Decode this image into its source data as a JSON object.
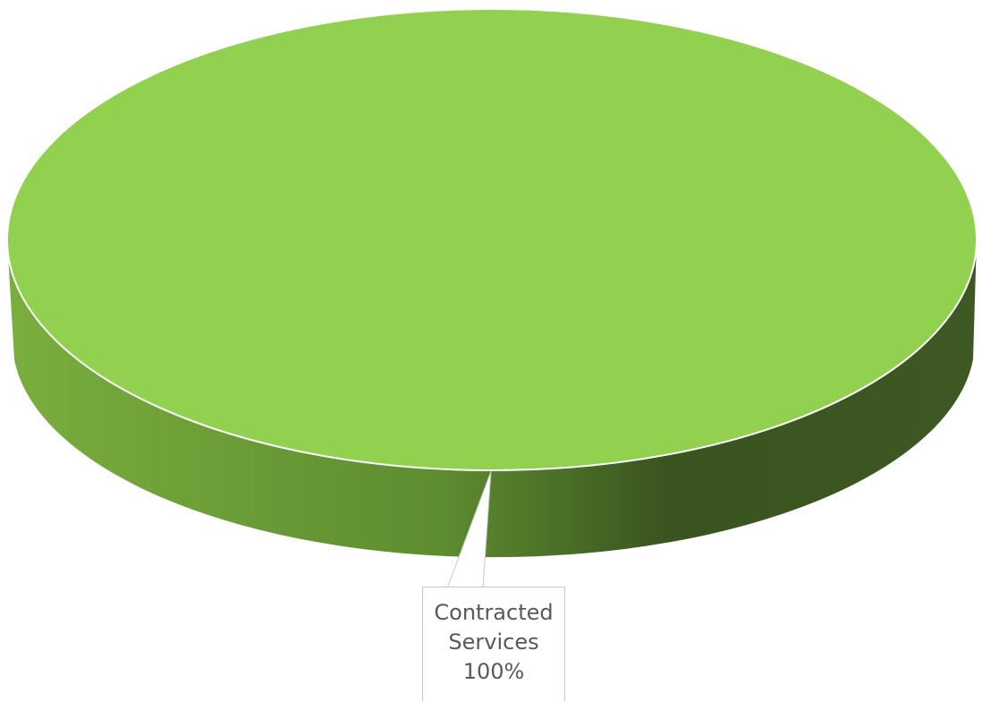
{
  "chart_data": {
    "type": "pie",
    "style": "3d",
    "categories": [
      "Contracted Services"
    ],
    "values": [
      100
    ],
    "data_labels": [
      {
        "category": "Contracted Services",
        "line1": "Contracted",
        "line2": "Services",
        "percent": "100%"
      }
    ],
    "title": "",
    "legend": "none",
    "colors": {
      "top_face": "#92D050",
      "side_light": "#7AAE3E",
      "side_mid": "#5E8C30",
      "side_dark": "#3A5420",
      "edge": "#ffffff"
    }
  }
}
